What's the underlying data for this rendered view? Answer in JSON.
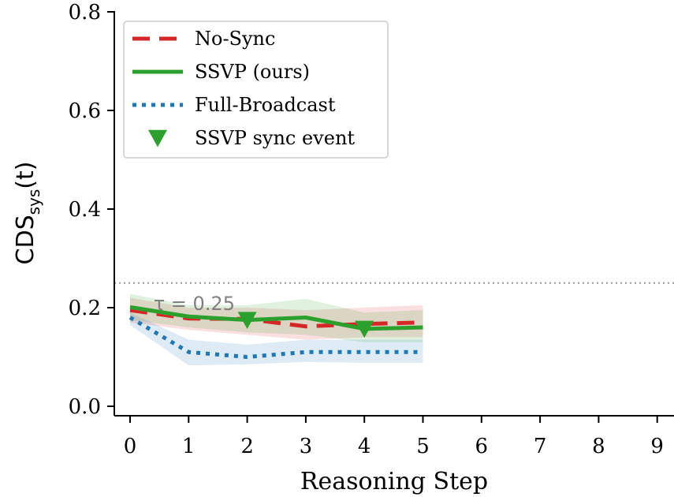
{
  "chart_data": {
    "type": "line",
    "xlabel": "Reasoning Step",
    "ylabel": {
      "main": "CDS",
      "sub": "sys",
      "suffix": "(t)"
    },
    "xlim": [
      -0.3,
      9.2
    ],
    "ylim": [
      -0.02,
      0.8
    ],
    "x_ticks": [
      0,
      1,
      2,
      3,
      4,
      5,
      6,
      7,
      8,
      9
    ],
    "x_tick_labels": [
      "0",
      "1",
      "2",
      "3",
      "4",
      "5",
      "6",
      "7",
      "8",
      "9"
    ],
    "y_ticks": [
      0.0,
      0.2,
      0.4,
      0.6,
      0.8
    ],
    "y_tick_labels": [
      "0.0",
      "0.2",
      "0.4",
      "0.6",
      "0.8"
    ],
    "x": [
      0,
      1,
      2,
      3,
      4,
      5
    ],
    "series": [
      {
        "name": "No-Sync",
        "color": "#d62728",
        "style": "dashed",
        "values": [
          0.195,
          0.178,
          0.177,
          0.162,
          0.167,
          0.17
        ],
        "band_lower": [
          0.17,
          0.155,
          0.145,
          0.135,
          0.14,
          0.14
        ],
        "band_upper": [
          0.22,
          0.2,
          0.2,
          0.195,
          0.2,
          0.205
        ]
      },
      {
        "name": "SSVP (ours)",
        "color": "#2ca02c",
        "style": "solid",
        "values": [
          0.201,
          0.182,
          0.175,
          0.18,
          0.157,
          0.16
        ],
        "band_lower": [
          0.175,
          0.16,
          0.15,
          0.145,
          0.13,
          0.13
        ],
        "band_upper": [
          0.228,
          0.205,
          0.205,
          0.218,
          0.19,
          0.195
        ]
      },
      {
        "name": "Full-Broadcast",
        "color": "#1f77b4",
        "style": "dotted",
        "values": [
          0.18,
          0.11,
          0.1,
          0.11,
          0.11,
          0.11
        ],
        "band_lower": [
          0.165,
          0.083,
          0.085,
          0.09,
          0.088,
          0.088
        ],
        "band_upper": [
          0.19,
          0.135,
          0.125,
          0.135,
          0.135,
          0.135
        ]
      }
    ],
    "sync_events": {
      "name": "SSVP sync event",
      "color": "#2ca02c",
      "marker": "triangle-down",
      "points": [
        {
          "x": 2,
          "y": 0.175
        },
        {
          "x": 4,
          "y": 0.157
        }
      ]
    },
    "threshold": {
      "y": 0.25,
      "color": "#999999",
      "label": "τ = 0.25"
    },
    "legend_position": "upper-left",
    "grid": false
  }
}
